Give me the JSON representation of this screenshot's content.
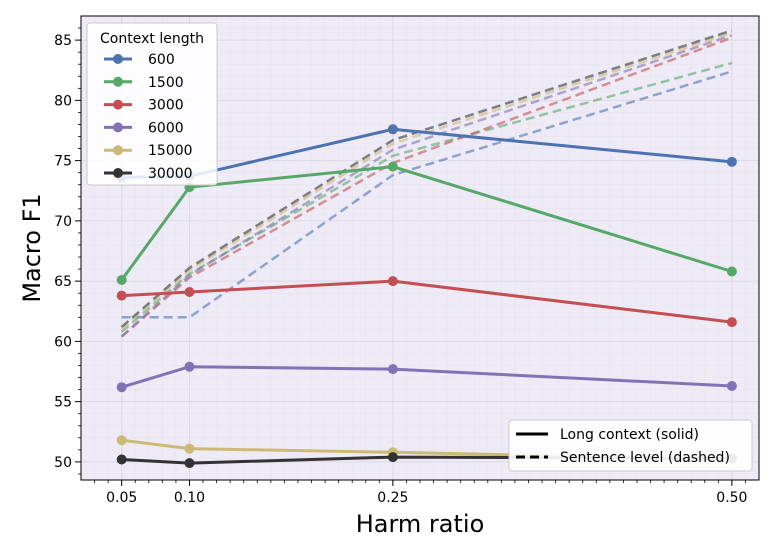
{
  "chart_data": {
    "type": "line",
    "xlabel": "Harm ratio",
    "ylabel": "Macro F1",
    "x": [
      0.05,
      0.1,
      0.25,
      0.5
    ],
    "x_tick_labels": [
      "0.05",
      "0.10",
      "0.25",
      "0.50"
    ],
    "xlim": [
      0.02,
      0.52
    ],
    "ylim": [
      48.5,
      87
    ],
    "y_ticks": [
      50,
      55,
      60,
      65,
      70,
      75,
      80,
      85
    ],
    "y_tick_labels": [
      "50",
      "55",
      "60",
      "65",
      "70",
      "75",
      "80",
      "85"
    ],
    "grid": true,
    "legend_title": "Context length",
    "legend_placement": "top-left",
    "series": [
      {
        "name": "600",
        "color": "#4C72B0",
        "solid": [
          73.6,
          73.7,
          77.6,
          74.9
        ],
        "dashed": [
          62.0,
          62.0,
          73.8,
          82.4
        ]
      },
      {
        "name": "1500",
        "color": "#55A868",
        "solid": [
          65.1,
          72.8,
          74.5,
          65.8
        ],
        "dashed": [
          60.8,
          65.6,
          75.4,
          83.1
        ]
      },
      {
        "name": "3000",
        "color": "#C44E52",
        "solid": [
          63.8,
          64.1,
          65.0,
          61.6
        ],
        "dashed": [
          60.4,
          65.3,
          74.8,
          85.2
        ]
      },
      {
        "name": "6000",
        "color": "#8172B3",
        "solid": [
          56.2,
          57.9,
          57.7,
          56.3
        ],
        "dashed": [
          60.4,
          65.5,
          75.9,
          85.4
        ]
      },
      {
        "name": "15000",
        "color": "#CCB974",
        "solid": [
          51.8,
          51.1,
          50.8,
          50.2
        ],
        "dashed": [
          61.0,
          65.9,
          76.4,
          85.6
        ]
      },
      {
        "name": "30000",
        "color": "#333333",
        "solid": [
          50.2,
          49.9,
          50.4,
          50.3
        ],
        "dashed": [
          61.2,
          66.1,
          76.7,
          85.8
        ]
      }
    ],
    "style_legend": [
      {
        "label": "Long context (solid)",
        "style": "solid"
      },
      {
        "label": "Sentence level (dashed)",
        "style": "dashed"
      }
    ]
  }
}
